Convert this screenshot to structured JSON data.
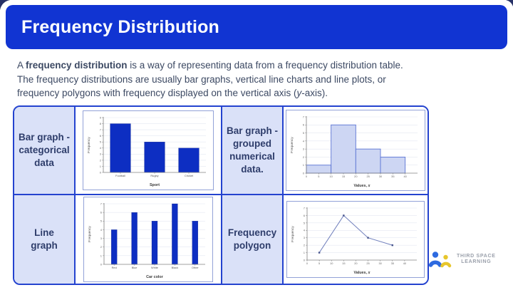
{
  "header": {
    "title": "Frequency Distribution"
  },
  "intro": {
    "l1a": "A ",
    "l1b": "frequency distribution",
    "l1c": " is a way of representing data from a frequency distribution table.",
    "l2": "The frequency distributions are usually bar graphs, vertical line charts and line plots, or",
    "l3a": "frequency polygons with frequency displayed on the vertical axis (",
    "l3b": "y",
    "l3c": "-axis)."
  },
  "table": {
    "cells": [
      {
        "label": "Bar graph -\ncategorical\ndata"
      },
      {
        "label": "Bar graph -\ngrouped\nnumerical\ndata."
      },
      {
        "label": "Line\ngraph"
      },
      {
        "label": "Frequency\npolygon"
      }
    ]
  },
  "chart_data": [
    {
      "name": "bar-graph-categorical",
      "type": "bar",
      "title": "",
      "xlabel": "Sport",
      "ylabel": "Frequency",
      "categories": [
        "Football",
        "Rugby",
        "Cricket"
      ],
      "values": [
        8,
        5,
        4
      ],
      "ylim": [
        0,
        9
      ],
      "grid": true,
      "bar_color": "#0d2ec2"
    },
    {
      "name": "bar-graph-grouped-numerical",
      "type": "histogram",
      "title": "",
      "xlabel": "Values, ",
      "xlabel_var": "x",
      "ylabel": "Frequency",
      "bin_edges": [
        0,
        10,
        20,
        30,
        40
      ],
      "values": [
        1,
        6,
        3,
        2
      ],
      "xlim": [
        0,
        45
      ],
      "xticks": [
        0,
        5,
        10,
        15,
        20,
        25,
        30,
        35,
        40
      ],
      "ylim": [
        0,
        7
      ],
      "grid": true,
      "bar_fill": "#cdd6f3",
      "bar_edge": "#5b74d4"
    },
    {
      "name": "line-graph",
      "type": "vline",
      "title": "",
      "xlabel": "Car color",
      "ylabel": "Frequency",
      "categories": [
        "Red",
        "Blue",
        "White",
        "Black",
        "Other"
      ],
      "values": [
        4,
        6,
        5,
        7,
        5
      ],
      "ylim": [
        0,
        7
      ],
      "grid": true,
      "bar_color": "#0d2ec2"
    },
    {
      "name": "frequency-polygon",
      "type": "line",
      "title": "",
      "xlabel": "Values, ",
      "xlabel_var": "x",
      "ylabel": "Frequency",
      "x": [
        5,
        15,
        25,
        35
      ],
      "y": [
        1,
        6,
        3,
        2
      ],
      "xlim": [
        0,
        45
      ],
      "xticks": [
        0,
        5,
        10,
        15,
        20,
        25,
        30,
        35,
        40
      ],
      "ylim": [
        0,
        7
      ],
      "grid": true,
      "line_color": "#7281bd",
      "marker_color": "#46538c"
    }
  ],
  "logo": {
    "line1": "THIRD SPACE",
    "line2": "LEARNING"
  },
  "colors": {
    "header_bg": "#1134d2",
    "table_border": "#2443cf",
    "label_cell_bg": "#dae1f8",
    "label_text": "#2e3d6b",
    "body_text": "#3c4963",
    "bar_blue": "#0d2ec2",
    "hist_fill": "#cdd6f3",
    "hist_edge": "#5b74d4",
    "polygon_line": "#7281bd",
    "corner_accent": "#273167",
    "logo_blue": "#2e6ae0",
    "logo_yellow": "#e7c62c",
    "brand_text": "#9aa0ab"
  }
}
